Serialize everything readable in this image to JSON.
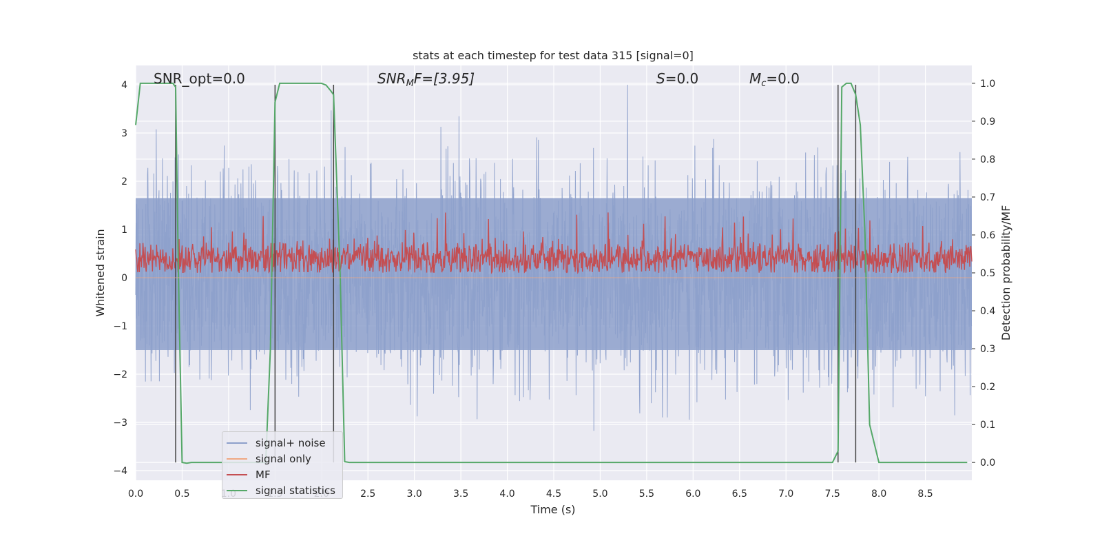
{
  "chart_data": {
    "type": "line",
    "title": "stats at each timestep for test data 315 [signal=0]",
    "xlabel": "Time (s)",
    "ylabel": "Whitened strain",
    "y2label": "Detection probability/MF",
    "xlim": [
      0.0,
      9.0
    ],
    "ylim": [
      -4.2,
      4.4
    ],
    "y2lim": [
      -0.047,
      1.047
    ],
    "xticks": [
      "0.0",
      "0.5",
      "1.0",
      "1.5",
      "2.0",
      "2.5",
      "3.0",
      "3.5",
      "4.0",
      "4.5",
      "5.0",
      "5.5",
      "6.0",
      "6.5",
      "7.0",
      "7.5",
      "8.0",
      "8.5"
    ],
    "yticks": [
      "4",
      "3",
      "2",
      "1",
      "0",
      "−1",
      "−2",
      "−3",
      "−4"
    ],
    "y2ticks": [
      "1.0",
      "0.9",
      "0.8",
      "0.7",
      "0.6",
      "0.5",
      "0.4",
      "0.3",
      "0.2",
      "0.1",
      "0.0"
    ],
    "grid": true,
    "legend_position": "lower-left",
    "annotations": {
      "snr_opt": "SNR_opt=0.0",
      "snr_mf_prefix": "SNR",
      "snr_mf_sub": "M",
      "snr_mf_suffix": "F=[3.95]",
      "s_prefix": "S",
      "s_suffix": "=0.0",
      "mc_prefix": "M",
      "mc_sub": "c",
      "mc_suffix": "=0.0"
    },
    "series": [
      {
        "name": "signal+ noise",
        "color": "#8da0cb",
        "axis": "left",
        "noise_envelope": {
          "x_start": 0.0,
          "x_end": 9.0,
          "sigma": 1.0,
          "band_low": -1.5,
          "band_high": 1.65,
          "max": 4.0,
          "min": -3.85
        }
      },
      {
        "name": "signal only",
        "color": "#f0a882",
        "axis": "left",
        "x": [
          0.0,
          9.0
        ],
        "y": [
          0.0,
          0.0
        ]
      },
      {
        "name": "MF",
        "color": "#c44e52",
        "axis": "right",
        "envelope": {
          "x_start": 0.0,
          "x_end": 9.0,
          "mean": 0.537,
          "low": 0.5,
          "high": 0.6,
          "spike_max": 0.66
        }
      },
      {
        "name": "signal statistics",
        "color": "#55a868",
        "axis": "right",
        "x": [
          0.0,
          0.05,
          0.1,
          0.2,
          0.3,
          0.4,
          0.43,
          0.46,
          0.5,
          0.55,
          0.6,
          0.8,
          1.0,
          1.2,
          1.4,
          1.45,
          1.5,
          1.55,
          1.6,
          1.8,
          2.0,
          2.05,
          2.1,
          2.13,
          2.2,
          2.25,
          2.3,
          2.5,
          3.0,
          4.0,
          5.0,
          6.0,
          7.0,
          7.3,
          7.5,
          7.56,
          7.6,
          7.65,
          7.7,
          7.75,
          7.8,
          7.85,
          7.9,
          8.0,
          8.1,
          8.5,
          8.95
        ],
        "y": [
          0.89,
          1.0,
          1.0,
          1.0,
          1.0,
          1.0,
          0.99,
          0.5,
          0.0,
          -0.002,
          0.0,
          0.0,
          0.0,
          0.0,
          0.0,
          0.3,
          0.95,
          1.0,
          1.0,
          1.0,
          1.0,
          0.995,
          0.98,
          0.97,
          0.5,
          0.002,
          0.0,
          0.0,
          0.0,
          0.0,
          0.0,
          0.0,
          0.0,
          0.0,
          0.0,
          0.03,
          0.99,
          1.0,
          1.0,
          0.97,
          0.89,
          0.6,
          0.1,
          0.0,
          0.0,
          0.0,
          0.0
        ]
      }
    ],
    "vertical_markers": [
      0.43,
      1.5,
      2.13,
      7.56,
      7.75
    ]
  }
}
